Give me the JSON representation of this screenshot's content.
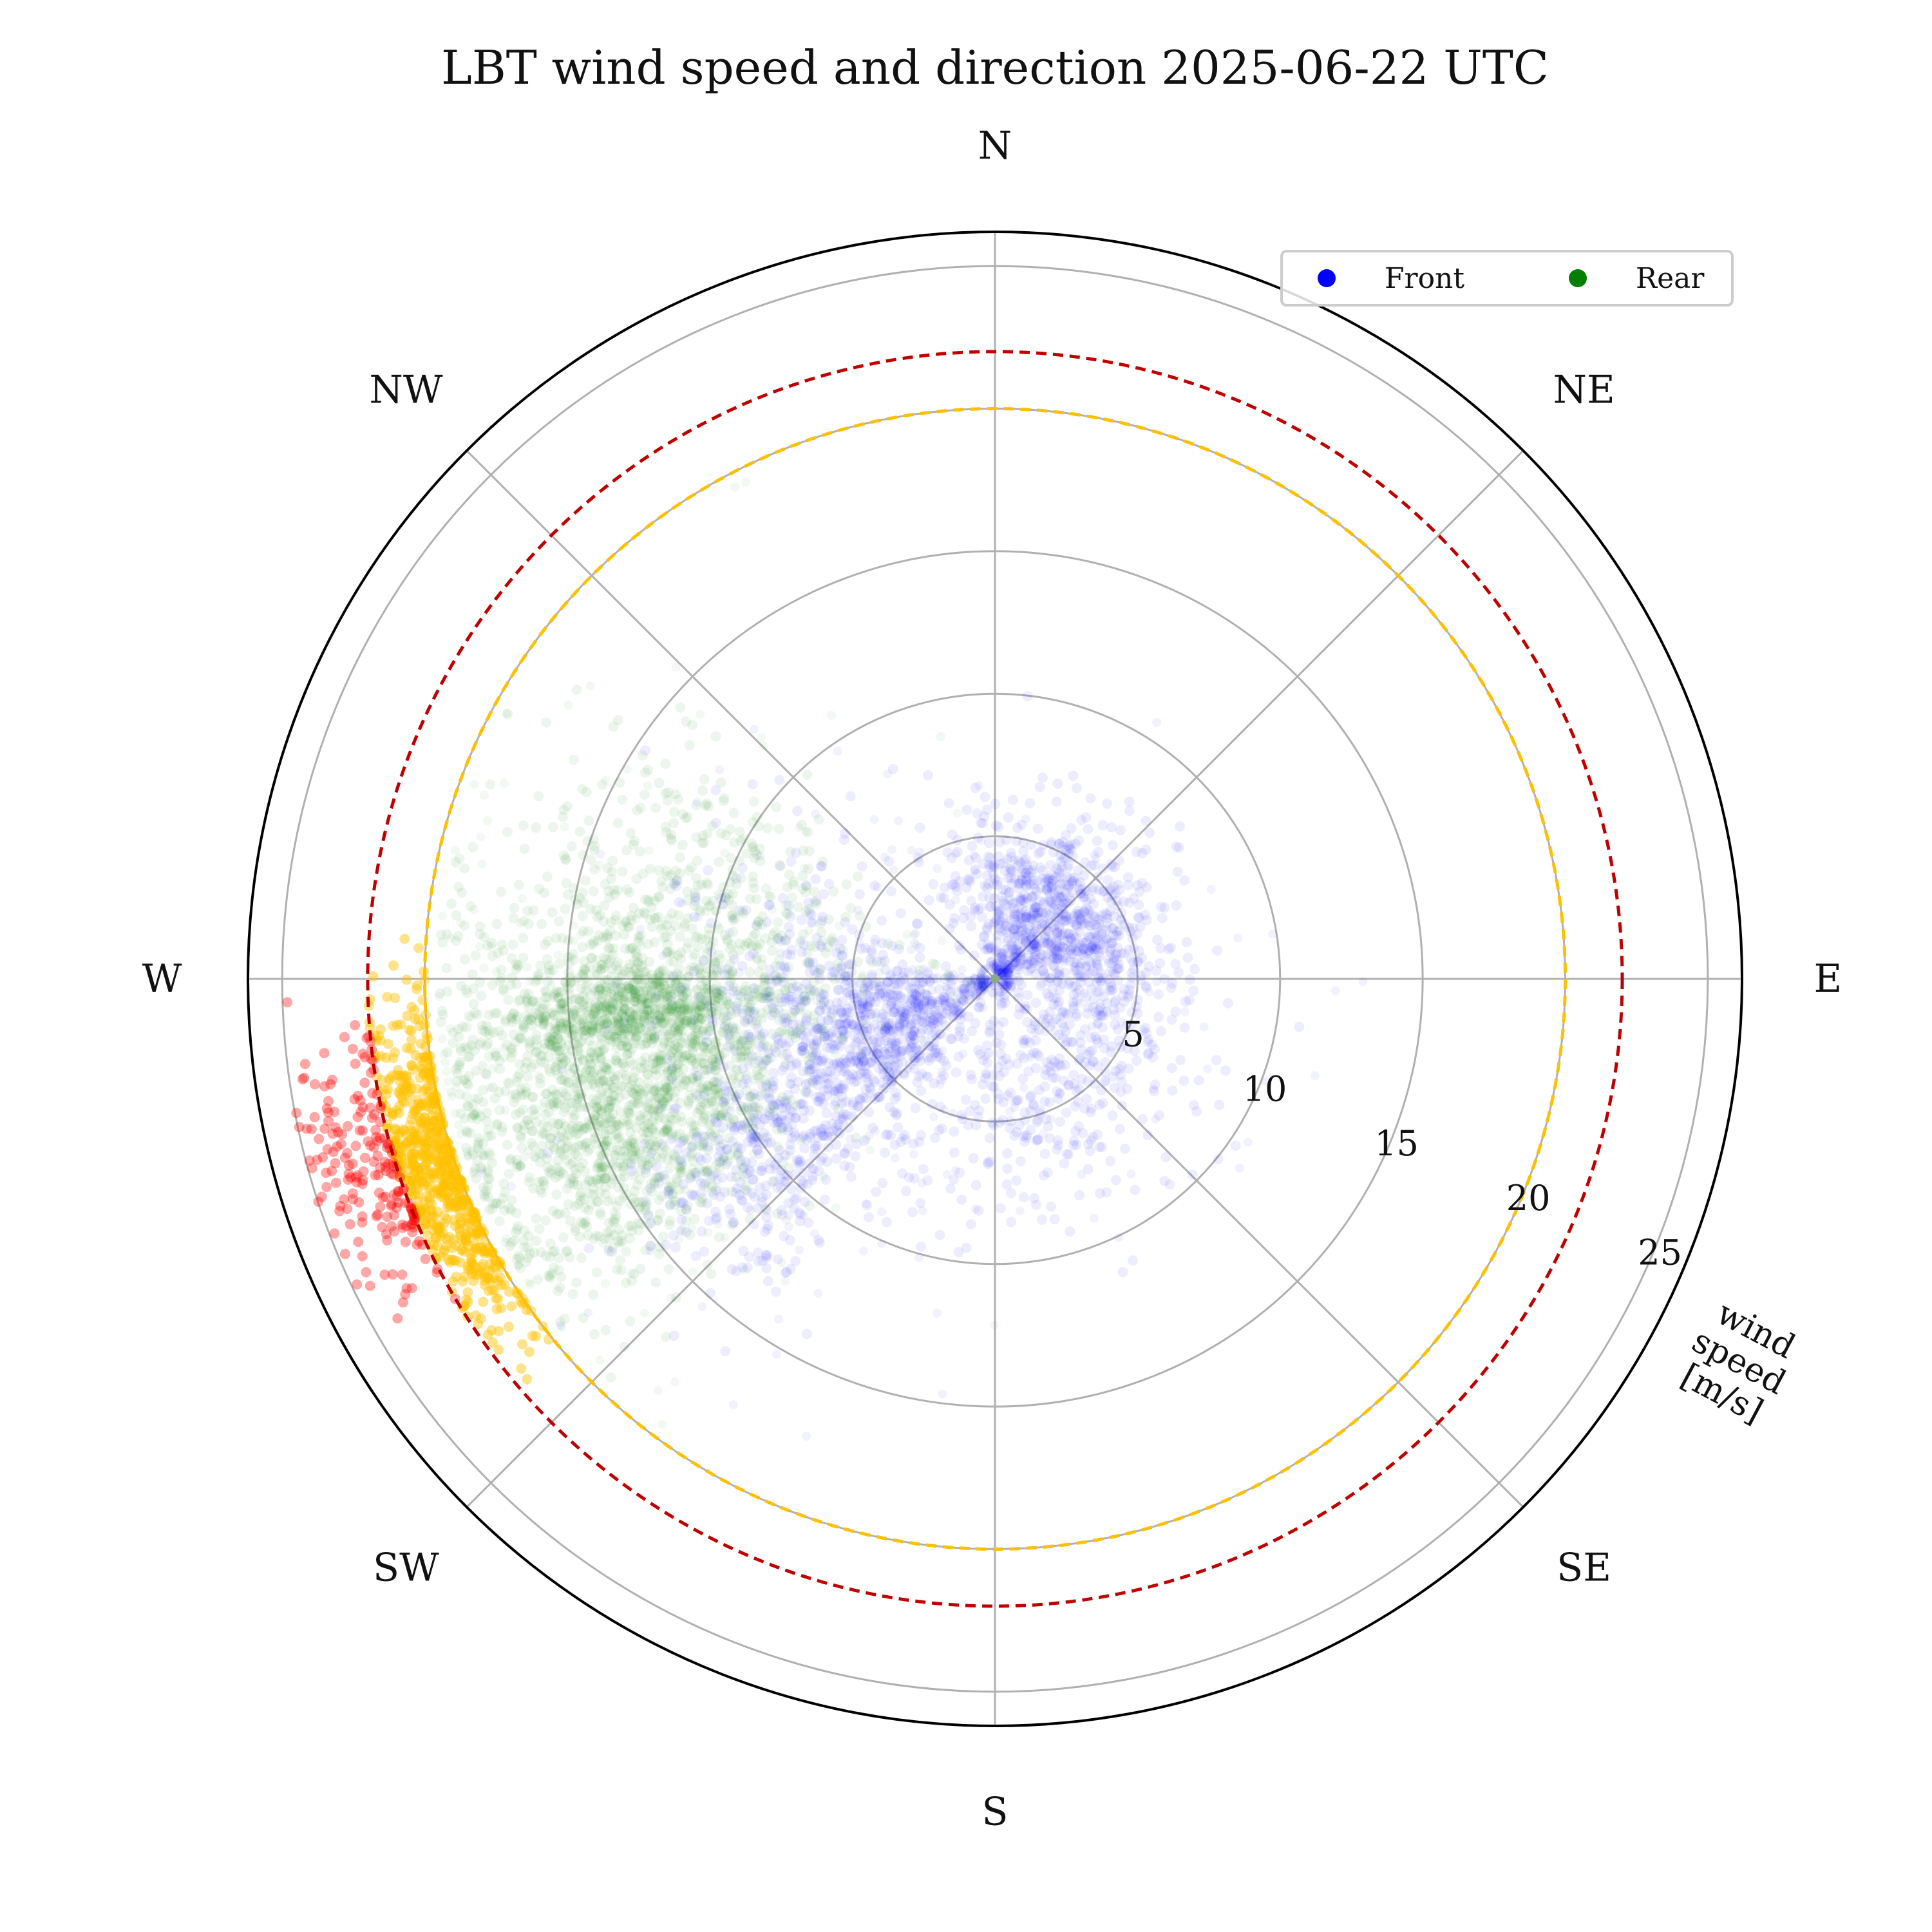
{
  "chart_data": {
    "type": "scatter",
    "projection": "polar",
    "title": "LBT wind speed and direction 2025-06-22 UTC",
    "direction_labels": [
      "N",
      "NE",
      "E",
      "SE",
      "S",
      "SW",
      "W",
      "NW"
    ],
    "direction_angles_deg": [
      0,
      45,
      90,
      135,
      180,
      225,
      270,
      315
    ],
    "theta_zero": "N",
    "theta_direction": "clockwise",
    "radial_label": "wind speed [m/s]",
    "radial_label_lines": [
      "wind",
      "speed",
      "[m/s]"
    ],
    "radial_ticks": [
      5,
      10,
      15,
      20,
      25
    ],
    "radial_tick_labels": [
      "5",
      "10",
      "15",
      "20",
      "25"
    ],
    "rlim": [
      0,
      26.2
    ],
    "grid": true,
    "legend_position": "top-right",
    "threshold_circles": [
      {
        "radius": 20,
        "color": "#ffc000",
        "style": "dashed"
      },
      {
        "radius": 22,
        "color": "#c00000",
        "style": "dashed"
      }
    ],
    "series": [
      {
        "name": "Front",
        "color": "#0000ff",
        "clusters": [
          {
            "dir_deg": 45,
            "speed": 3.3,
            "dir_spread_deg": 34,
            "speed_spread": 1.7,
            "weight": 0.36
          },
          {
            "dir_deg": 245,
            "speed": 4.5,
            "dir_spread_deg": 18,
            "speed_spread": 2.2,
            "weight": 0.26
          },
          {
            "dir_deg": 233,
            "speed": 10.5,
            "dir_spread_deg": 9,
            "speed_spread": 2.5,
            "weight": 0.14
          },
          {
            "dir_deg": 150,
            "speed": 5.0,
            "dir_spread_deg": 32,
            "speed_spread": 2.2,
            "weight": 0.14
          },
          {
            "dir_deg": 270,
            "speed": 7.0,
            "dir_spread_deg": 22,
            "speed_spread": 2.5,
            "weight": 0.1
          }
        ]
      },
      {
        "name": "Rear",
        "color": "#007f00",
        "clusters": [
          {
            "dir_deg": 258,
            "speed": 13.5,
            "dir_spread_deg": 11,
            "speed_spread": 3.2,
            "weight": 0.55
          },
          {
            "dir_deg": 265,
            "speed": 13.0,
            "dir_spread_deg": 3,
            "speed_spread": 2.0,
            "weight": 0.15
          },
          {
            "dir_deg": 243,
            "speed": 15.0,
            "dir_spread_deg": 7,
            "speed_spread": 2.8,
            "weight": 0.15
          },
          {
            "dir_deg": 285,
            "speed": 11.0,
            "dir_spread_deg": 12,
            "speed_spread": 3.5,
            "weight": 0.15
          }
        ]
      }
    ],
    "warning_points": {
      "color": "#ffc000",
      "speed_range": [
        20,
        22
      ],
      "dir_center_deg": 251,
      "dir_spread_deg": 8
    },
    "alarm_points": {
      "color": "#ff0000",
      "speed_range": [
        22,
        25
      ],
      "dir_center_deg": 253,
      "dir_spread_deg": 6
    }
  }
}
